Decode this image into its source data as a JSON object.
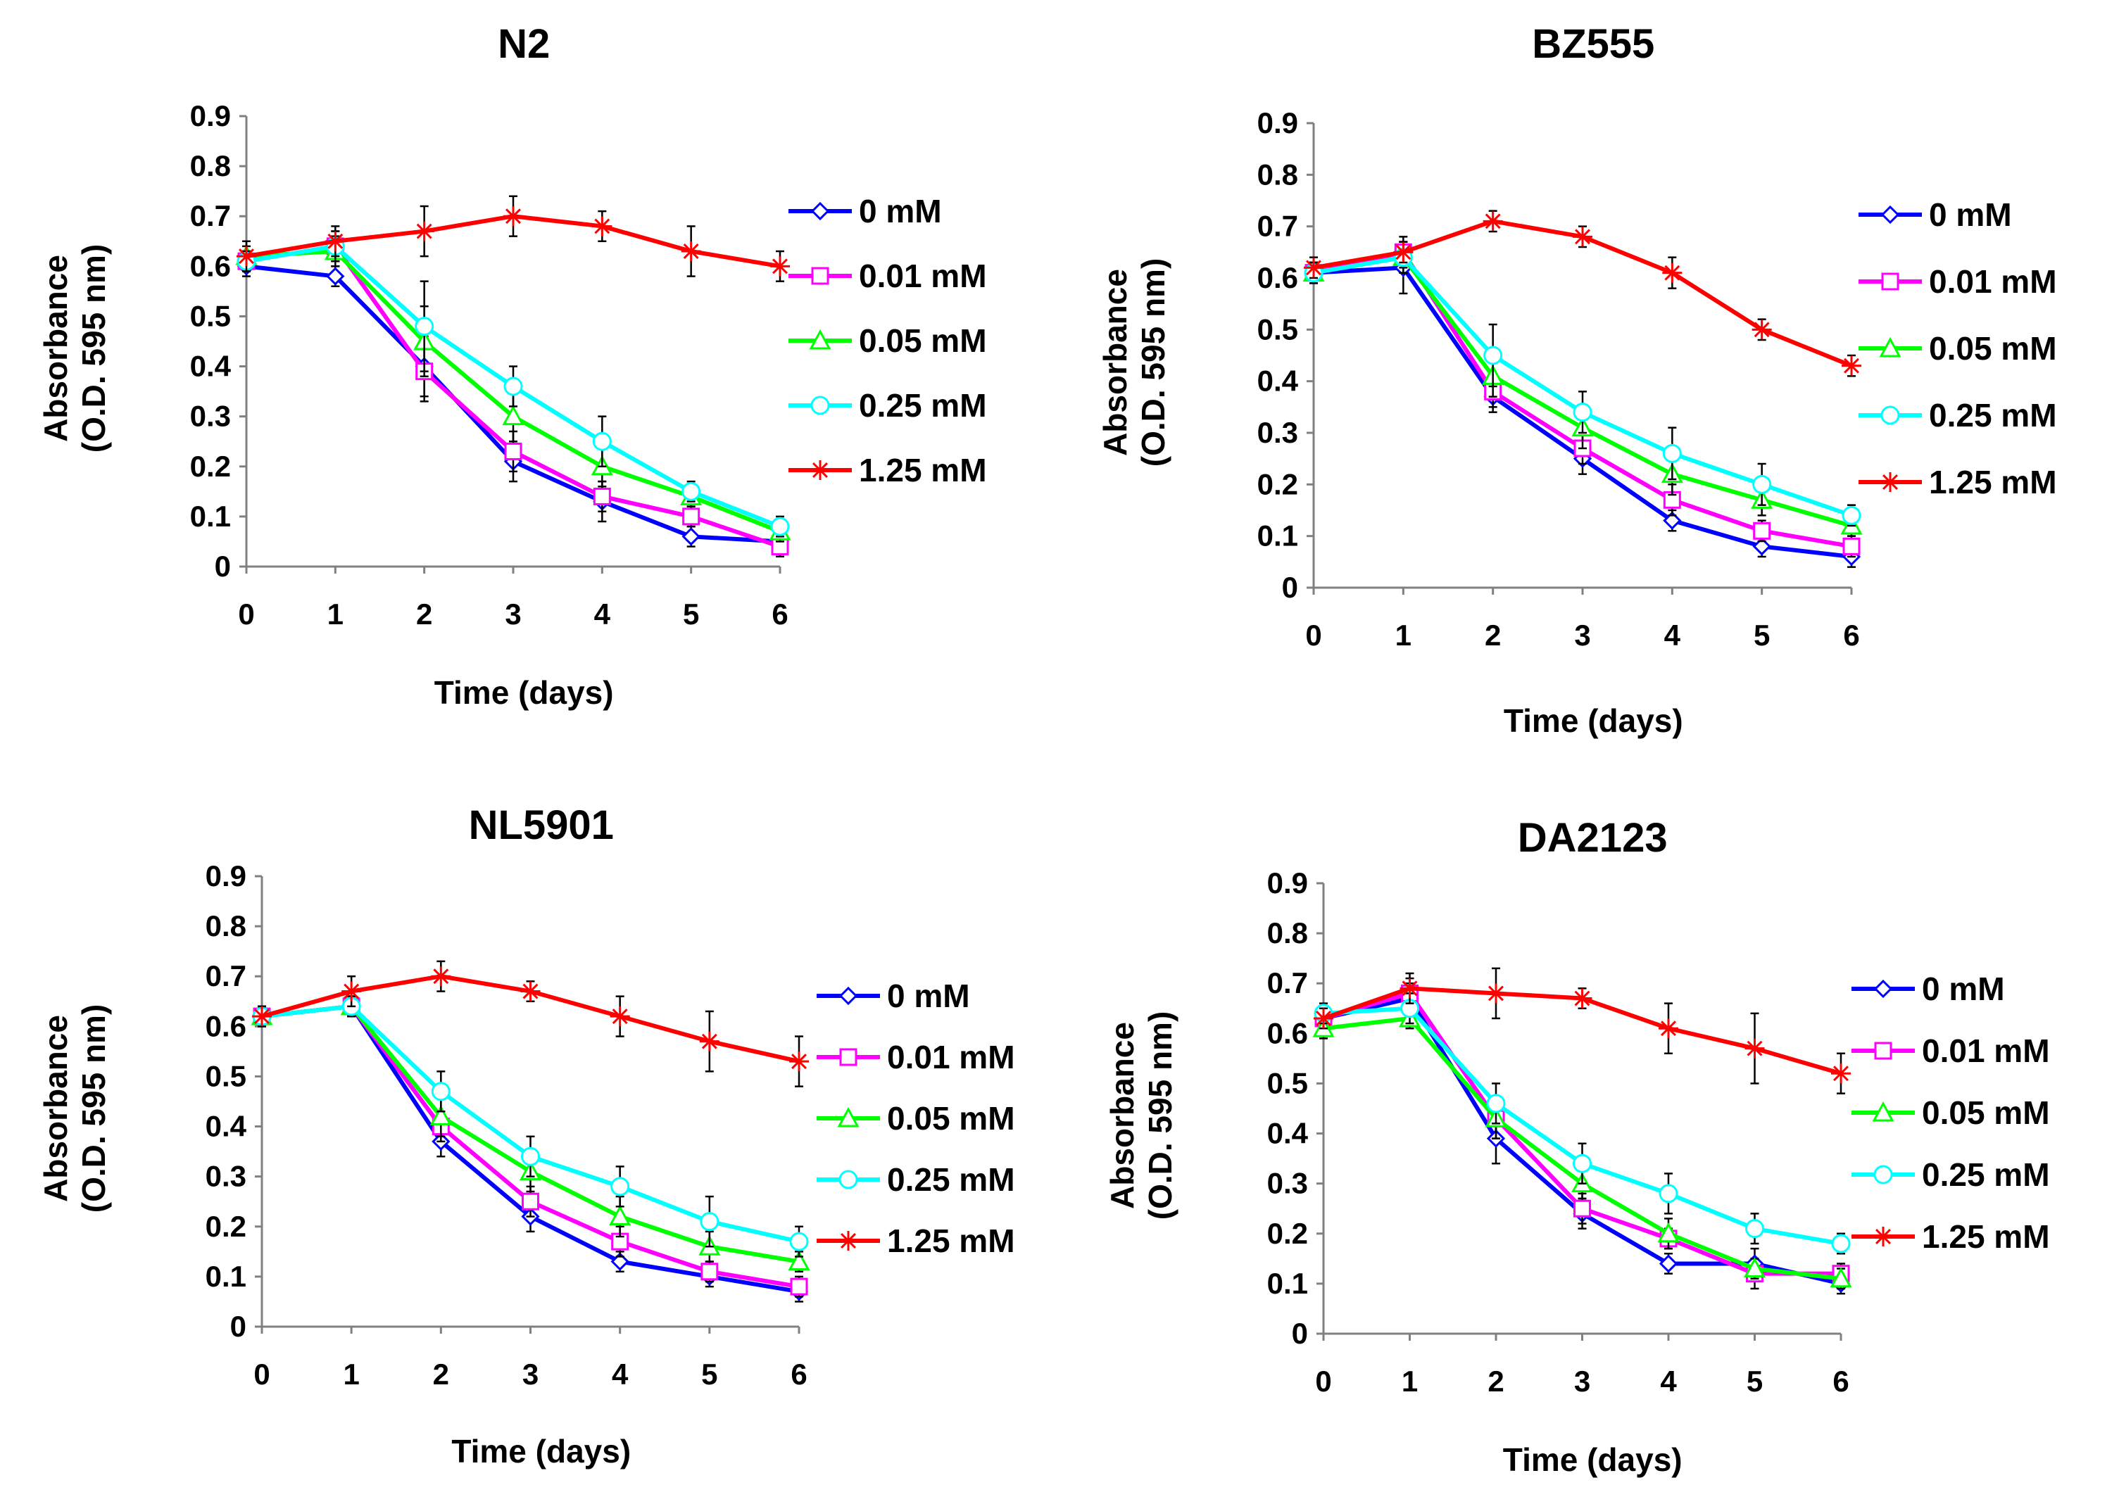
{
  "chart_data": [
    {
      "type": "line",
      "title": "N2",
      "xlabel": "Time (days)",
      "ylabel_lines": [
        "Absorbance",
        "(O.D. 595 nm)"
      ],
      "x": [
        0,
        1,
        2,
        3,
        4,
        5,
        6
      ],
      "xlim": [
        0,
        6
      ],
      "ylim": [
        0,
        0.9
      ],
      "yticks": [
        "0",
        "0.1",
        "0.2",
        "0.3",
        "0.4",
        "0.5",
        "0.6",
        "0.7",
        "0.8",
        "0.9"
      ],
      "legend_position": "right",
      "series": [
        {
          "name": "0 mM",
          "color": "#0000ff",
          "marker": "diamond",
          "values": [
            0.6,
            0.58,
            0.4,
            0.21,
            0.13,
            0.06,
            0.05
          ],
          "errors": [
            0.02,
            0.02,
            0.06,
            0.04,
            0.04,
            0.02,
            0.02
          ]
        },
        {
          "name": "0.01 mM",
          "color": "#ff00ff",
          "marker": "square",
          "values": [
            0.61,
            0.64,
            0.39,
            0.23,
            0.14,
            0.1,
            0.04
          ],
          "errors": [
            0.02,
            0.03,
            0.06,
            0.04,
            0.03,
            0.02,
            0.02
          ]
        },
        {
          "name": "0.05 mM",
          "color": "#00ff00",
          "marker": "triangle",
          "values": [
            0.62,
            0.63,
            0.45,
            0.3,
            0.2,
            0.14,
            0.07
          ],
          "errors": [
            0.02,
            0.03,
            0.07,
            0.05,
            0.04,
            0.02,
            0.02
          ]
        },
        {
          "name": "0.25 mM",
          "color": "#00ffff",
          "marker": "circle",
          "values": [
            0.61,
            0.64,
            0.48,
            0.36,
            0.25,
            0.15,
            0.08
          ],
          "errors": [
            0.02,
            0.03,
            0.09,
            0.04,
            0.05,
            0.02,
            0.02
          ]
        },
        {
          "name": "1.25 mM",
          "color": "#ff0000",
          "marker": "star",
          "values": [
            0.62,
            0.65,
            0.67,
            0.7,
            0.68,
            0.63,
            0.6
          ],
          "errors": [
            0.03,
            0.03,
            0.05,
            0.04,
            0.03,
            0.05,
            0.03
          ]
        }
      ]
    },
    {
      "type": "line",
      "title": "BZ555",
      "xlabel": "Time (days)",
      "ylabel_lines": [
        "Absorbance",
        "(O.D. 595 nm)"
      ],
      "x": [
        0,
        1,
        2,
        3,
        4,
        5,
        6
      ],
      "xlim": [
        0,
        6
      ],
      "ylim": [
        0,
        0.9
      ],
      "yticks": [
        "0",
        "0.1",
        "0.2",
        "0.3",
        "0.4",
        "0.5",
        "0.6",
        "0.7",
        "0.8",
        "0.9"
      ],
      "legend_position": "right",
      "series": [
        {
          "name": "0 mM",
          "color": "#0000ff",
          "marker": "diamond",
          "values": [
            0.61,
            0.62,
            0.37,
            0.25,
            0.13,
            0.08,
            0.06
          ],
          "errors": [
            0.02,
            0.05,
            0.03,
            0.03,
            0.02,
            0.02,
            0.02
          ]
        },
        {
          "name": "0.01 mM",
          "color": "#ff00ff",
          "marker": "square",
          "values": [
            0.61,
            0.65,
            0.38,
            0.27,
            0.17,
            0.11,
            0.08
          ],
          "errors": [
            0.02,
            0.03,
            0.03,
            0.03,
            0.03,
            0.02,
            0.02
          ]
        },
        {
          "name": "0.05 mM",
          "color": "#00ff00",
          "marker": "triangle",
          "values": [
            0.61,
            0.64,
            0.41,
            0.31,
            0.22,
            0.17,
            0.12
          ],
          "errors": [
            0.02,
            0.03,
            0.04,
            0.04,
            0.04,
            0.03,
            0.02
          ]
        },
        {
          "name": "0.25 mM",
          "color": "#00ffff",
          "marker": "circle",
          "values": [
            0.61,
            0.64,
            0.45,
            0.34,
            0.26,
            0.2,
            0.14
          ],
          "errors": [
            0.02,
            0.03,
            0.06,
            0.04,
            0.05,
            0.04,
            0.02
          ]
        },
        {
          "name": "1.25 mM",
          "color": "#ff0000",
          "marker": "star",
          "values": [
            0.62,
            0.65,
            0.71,
            0.68,
            0.61,
            0.5,
            0.43
          ],
          "errors": [
            0.02,
            0.02,
            0.02,
            0.02,
            0.03,
            0.02,
            0.02
          ]
        }
      ]
    },
    {
      "type": "line",
      "title": "NL5901",
      "xlabel": "Time (days)",
      "ylabel_lines": [
        "Absorbance",
        "(O.D. 595 nm)"
      ],
      "x": [
        0,
        1,
        2,
        3,
        4,
        5,
        6
      ],
      "xlim": [
        0,
        6
      ],
      "ylim": [
        0,
        0.9
      ],
      "yticks": [
        "0",
        "0.1",
        "0.2",
        "0.3",
        "0.4",
        "0.5",
        "0.6",
        "0.7",
        "0.8",
        "0.9"
      ],
      "legend_position": "right",
      "series": [
        {
          "name": "0 mM",
          "color": "#0000ff",
          "marker": "diamond",
          "values": [
            0.62,
            0.64,
            0.37,
            0.22,
            0.13,
            0.1,
            0.07
          ],
          "errors": [
            0.02,
            0.02,
            0.03,
            0.03,
            0.02,
            0.02,
            0.02
          ]
        },
        {
          "name": "0.01 mM",
          "color": "#ff00ff",
          "marker": "square",
          "values": [
            0.62,
            0.64,
            0.4,
            0.25,
            0.17,
            0.11,
            0.08
          ],
          "errors": [
            0.02,
            0.02,
            0.03,
            0.03,
            0.03,
            0.02,
            0.02
          ]
        },
        {
          "name": "0.05 mM",
          "color": "#00ff00",
          "marker": "triangle",
          "values": [
            0.62,
            0.64,
            0.42,
            0.31,
            0.22,
            0.16,
            0.13
          ],
          "errors": [
            0.02,
            0.02,
            0.04,
            0.04,
            0.04,
            0.03,
            0.02
          ]
        },
        {
          "name": "0.25 mM",
          "color": "#00ffff",
          "marker": "circle",
          "values": [
            0.62,
            0.64,
            0.47,
            0.34,
            0.28,
            0.21,
            0.17
          ],
          "errors": [
            0.02,
            0.02,
            0.04,
            0.04,
            0.04,
            0.05,
            0.03
          ]
        },
        {
          "name": "1.25 mM",
          "color": "#ff0000",
          "marker": "star",
          "values": [
            0.62,
            0.67,
            0.7,
            0.67,
            0.62,
            0.57,
            0.53
          ],
          "errors": [
            0.02,
            0.03,
            0.03,
            0.02,
            0.04,
            0.06,
            0.05
          ]
        }
      ]
    },
    {
      "type": "line",
      "title": "DA2123",
      "xlabel": "Time (days)",
      "ylabel_lines": [
        "Absorbance",
        "(O.D. 595 nm)"
      ],
      "x": [
        0,
        1,
        2,
        3,
        4,
        5,
        6
      ],
      "xlim": [
        0,
        6
      ],
      "ylim": [
        0,
        0.9
      ],
      "yticks": [
        "0",
        "0.1",
        "0.2",
        "0.3",
        "0.4",
        "0.5",
        "0.6",
        "0.7",
        "0.8",
        "0.9"
      ],
      "legend_position": "right",
      "series": [
        {
          "name": "0 mM",
          "color": "#0000ff",
          "marker": "diamond",
          "values": [
            0.63,
            0.67,
            0.39,
            0.24,
            0.14,
            0.14,
            0.1
          ],
          "errors": [
            0.02,
            0.03,
            0.05,
            0.03,
            0.02,
            0.03,
            0.02
          ]
        },
        {
          "name": "0.01 mM",
          "color": "#ff00ff",
          "marker": "square",
          "values": [
            0.63,
            0.68,
            0.43,
            0.25,
            0.19,
            0.12,
            0.12
          ],
          "errors": [
            0.02,
            0.03,
            0.04,
            0.03,
            0.02,
            0.03,
            0.02
          ]
        },
        {
          "name": "0.05 mM",
          "color": "#00ff00",
          "marker": "triangle",
          "values": [
            0.61,
            0.63,
            0.43,
            0.3,
            0.2,
            0.13,
            0.11
          ],
          "errors": [
            0.02,
            0.02,
            0.04,
            0.03,
            0.03,
            0.02,
            0.02
          ]
        },
        {
          "name": "0.25 mM",
          "color": "#00ffff",
          "marker": "circle",
          "values": [
            0.64,
            0.65,
            0.46,
            0.34,
            0.28,
            0.21,
            0.18
          ],
          "errors": [
            0.02,
            0.03,
            0.04,
            0.04,
            0.04,
            0.03,
            0.02
          ]
        },
        {
          "name": "1.25 mM",
          "color": "#ff0000",
          "marker": "star",
          "values": [
            0.63,
            0.69,
            0.68,
            0.67,
            0.61,
            0.57,
            0.52
          ],
          "errors": [
            0.02,
            0.03,
            0.05,
            0.02,
            0.05,
            0.07,
            0.04
          ]
        }
      ]
    }
  ]
}
